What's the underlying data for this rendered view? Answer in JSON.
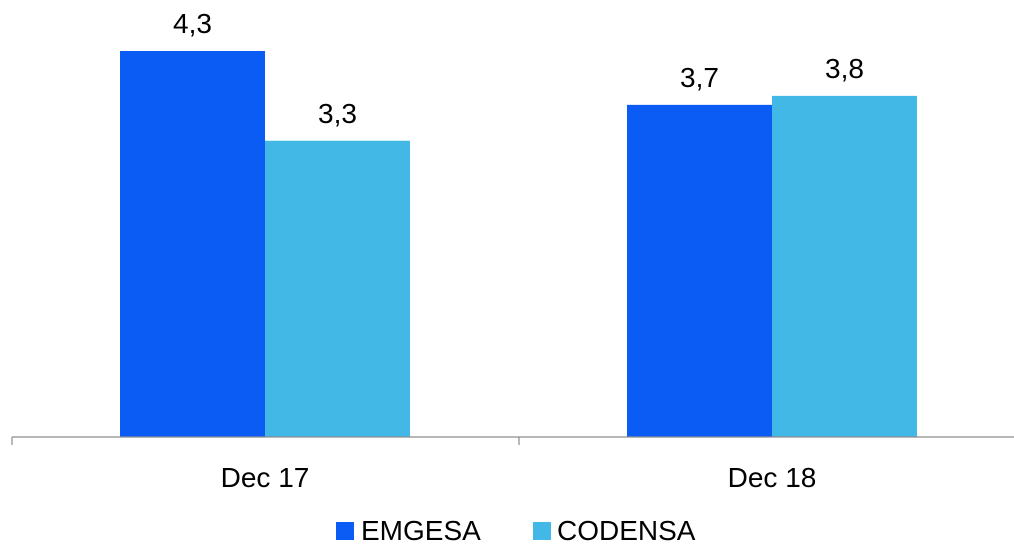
{
  "chart_data": {
    "type": "bar",
    "categories": [
      "Dec 17",
      "Dec 18"
    ],
    "series": [
      {
        "name": "EMGESA",
        "values": [
          4.3,
          3.7
        ],
        "labels": [
          "4,3",
          "3,7"
        ],
        "color": "#0a5cf5"
      },
      {
        "name": "CODENSA",
        "values": [
          3.3,
          3.8
        ],
        "labels": [
          "3,3",
          "3,8"
        ],
        "color": "#42b8e6"
      }
    ],
    "title": "",
    "xlabel": "",
    "ylabel": "",
    "ylim": [
      0,
      4.3
    ],
    "grid": false,
    "legend_position": "bottom"
  }
}
